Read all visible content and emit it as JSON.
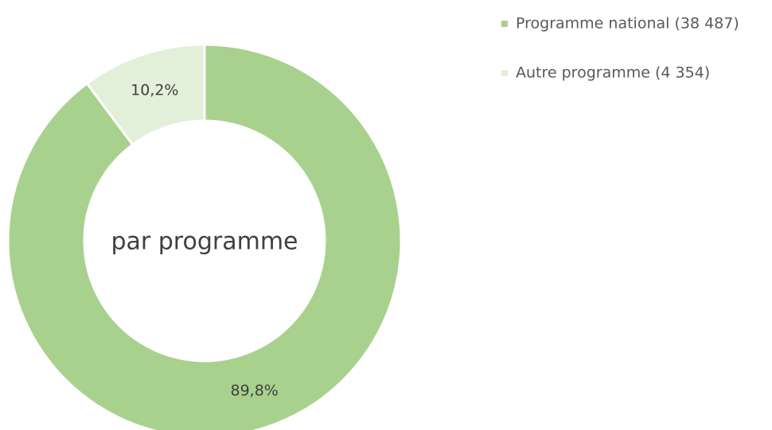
{
  "chart_data": {
    "type": "donut",
    "categories": [
      "Programme national (38 487)",
      "Autre programme (4 354)"
    ],
    "values": [
      89.8,
      10.2
    ],
    "value_labels": [
      "89,8%",
      "10,2%"
    ],
    "colors": [
      "#a9d18e",
      "#e2f0d9"
    ],
    "center_label": "par programme"
  }
}
